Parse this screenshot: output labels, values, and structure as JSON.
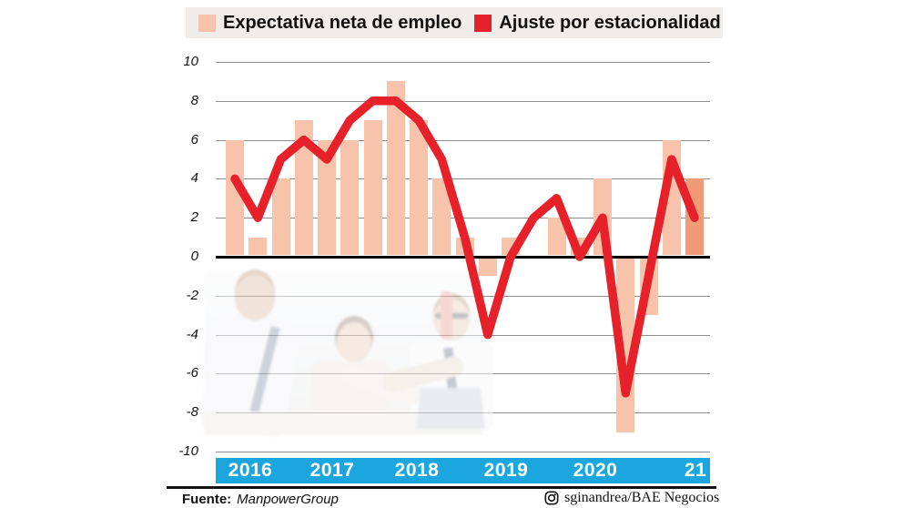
{
  "legend": {
    "items": [
      {
        "label": "Expectativa neta de empleo",
        "swatch": "bar-swatch"
      },
      {
        "label": "Ajuste por estacionalidad",
        "swatch": "line-swatch"
      }
    ]
  },
  "colors": {
    "bar": "#f7c3ab",
    "bar_current": "#f09b78",
    "line": "#e6212a",
    "band": "#1ca6e0",
    "legend_bg": "#efecea",
    "grid": "#8e8e8e",
    "zero_line": "#000000"
  },
  "chart_data": {
    "type": "bar+line",
    "title": "",
    "xlabel": "",
    "ylabel": "",
    "n_points": 21,
    "period": "quarterly, 2016Q1 - 2021Q1",
    "x_year_labels": [
      "2016",
      "2017",
      "2018",
      "2019",
      "2020",
      "21"
    ],
    "y_ticks": [
      10,
      8,
      6,
      4,
      2,
      0,
      -2,
      -4,
      -6,
      -8,
      -10
    ],
    "ylim": [
      -10,
      10
    ],
    "grid": true,
    "legend_position": "top",
    "series": [
      {
        "name": "Expectativa neta de empleo",
        "type": "bar",
        "values": [
          6,
          1,
          4,
          7,
          6,
          6,
          7,
          9,
          7,
          4,
          1,
          -1,
          1,
          0,
          2,
          1,
          4,
          -9,
          -3,
          6,
          4
        ],
        "note_last_point": "highlighted in darker color"
      },
      {
        "name": "Ajuste por estacionalidad",
        "type": "line",
        "values": [
          4,
          2,
          5,
          6,
          5,
          7,
          8,
          8,
          7,
          5,
          1,
          -4,
          0,
          2,
          3,
          0,
          2,
          -7,
          -1,
          5,
          2
        ]
      }
    ]
  },
  "footer": {
    "source_label": "Fuente:",
    "source_value": "ManpowerGroup",
    "credit_icon": "instagram-icon",
    "credit": "sginandrea/BAE Negocios"
  }
}
